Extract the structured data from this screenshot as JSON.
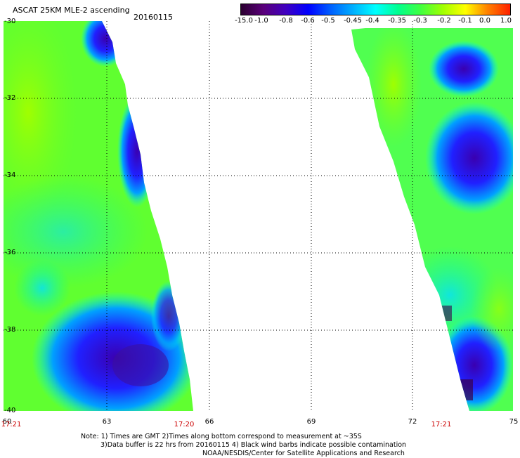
{
  "title": "ASCAT 25KM MLE-2 ascending",
  "date": "20160115",
  "colorbar": {
    "labels": [
      "-15.0",
      "-1.0",
      "-0.8",
      "-0.6",
      "-0.5",
      "-0.45",
      "-0.4",
      "-0.35",
      "-0.3",
      "-0.2",
      "-0.1",
      "0.0",
      "1.0"
    ],
    "colors": [
      "#2b0030",
      "#5a007a",
      "#4000c0",
      "#0000ff",
      "#0060ff",
      "#00b0ff",
      "#00ffff",
      "#00ff90",
      "#40ff40",
      "#a0ff00",
      "#ffff00",
      "#ff8000",
      "#ff2000"
    ]
  },
  "axes": {
    "lat_labels": [
      "-30",
      "-32",
      "-34",
      "-36",
      "-38",
      "-40"
    ],
    "lon_labels": [
      "60",
      "63",
      "66",
      "69",
      "72",
      "75"
    ],
    "time_labels": [
      "17:21",
      "17:20",
      "17:21"
    ]
  },
  "notes": {
    "line1": "Note: 1) Times are GMT 2)Times along bottom correspond to measurement at ~35S",
    "line2": "3)Data buffer is 22 hrs from 20160115 4) Black wind barbs indicate possible contamination",
    "line3": "NOAA/NESDIS/Center for Satellite Applications and Research"
  }
}
